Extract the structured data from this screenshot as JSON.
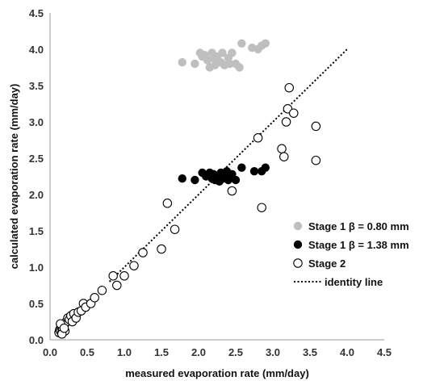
{
  "chart_data": {
    "type": "scatter",
    "xlabel": "measured evaporation rate (mm/day)",
    "ylabel": "calculated evaporation rate (mm/day)",
    "xlim": [
      0,
      4.5
    ],
    "ylim": [
      0,
      4.5
    ],
    "x_ticks": [
      "0.0",
      "0.5",
      "1.0",
      "1.5",
      "2.0",
      "2.5",
      "3.0",
      "3.5",
      "4.0",
      "4.5"
    ],
    "y_ticks": [
      "0.0",
      "0.5",
      "1.0",
      "1.5",
      "2.0",
      "2.5",
      "3.0",
      "3.5",
      "4.0",
      "4.5"
    ],
    "grid": false,
    "legend_position": "right",
    "series": [
      {
        "name": "Stage 1 β = 0.80 mm",
        "marker": "filled-circle",
        "color": "#bfbfbf",
        "points": [
          [
            1.78,
            3.82
          ],
          [
            1.95,
            3.8
          ],
          [
            2.02,
            3.95
          ],
          [
            2.08,
            3.92
          ],
          [
            2.12,
            3.85
          ],
          [
            2.18,
            3.95
          ],
          [
            2.22,
            3.78
          ],
          [
            2.25,
            3.9
          ],
          [
            2.28,
            3.82
          ],
          [
            2.32,
            3.95
          ],
          [
            2.35,
            3.78
          ],
          [
            2.4,
            3.88
          ],
          [
            2.45,
            3.95
          ],
          [
            2.5,
            3.8
          ],
          [
            2.55,
            3.75
          ],
          [
            2.58,
            4.08
          ],
          [
            2.72,
            4.02
          ],
          [
            2.8,
            4.0
          ],
          [
            2.85,
            4.05
          ],
          [
            2.9,
            4.08
          ],
          [
            2.15,
            3.75
          ],
          [
            2.2,
            3.88
          ],
          [
            2.3,
            3.82
          ],
          [
            2.42,
            3.8
          ],
          [
            2.05,
            3.9
          ]
        ]
      },
      {
        "name": "Stage 1 β = 1.38 mm",
        "marker": "filled-circle",
        "color": "#000000",
        "points": [
          [
            1.78,
            2.22
          ],
          [
            1.95,
            2.2
          ],
          [
            2.05,
            2.3
          ],
          [
            2.1,
            2.25
          ],
          [
            2.15,
            2.3
          ],
          [
            2.2,
            2.28
          ],
          [
            2.22,
            2.2
          ],
          [
            2.25,
            2.25
          ],
          [
            2.28,
            2.18
          ],
          [
            2.3,
            2.3
          ],
          [
            2.33,
            2.22
          ],
          [
            2.36,
            2.28
          ],
          [
            2.4,
            2.2
          ],
          [
            2.45,
            2.28
          ],
          [
            2.5,
            2.2
          ],
          [
            2.58,
            2.37
          ],
          [
            2.75,
            2.32
          ],
          [
            2.85,
            2.32
          ],
          [
            2.9,
            2.37
          ],
          [
            2.38,
            2.32
          ],
          [
            2.18,
            2.22
          ],
          [
            2.42,
            2.25
          ]
        ]
      },
      {
        "name": "Stage 2",
        "marker": "open-circle",
        "color": "#000000",
        "points": [
          [
            0.12,
            0.1
          ],
          [
            0.13,
            0.14
          ],
          [
            0.14,
            0.12
          ],
          [
            0.15,
            0.18
          ],
          [
            0.16,
            0.1
          ],
          [
            0.17,
            0.15
          ],
          [
            0.18,
            0.2
          ],
          [
            0.2,
            0.22
          ],
          [
            0.2,
            0.12
          ],
          [
            0.22,
            0.25
          ],
          [
            0.24,
            0.3
          ],
          [
            0.26,
            0.28
          ],
          [
            0.28,
            0.33
          ],
          [
            0.3,
            0.25
          ],
          [
            0.32,
            0.36
          ],
          [
            0.35,
            0.3
          ],
          [
            0.38,
            0.38
          ],
          [
            0.42,
            0.4
          ],
          [
            0.45,
            0.5
          ],
          [
            0.48,
            0.45
          ],
          [
            0.55,
            0.5
          ],
          [
            0.6,
            0.58
          ],
          [
            0.7,
            0.68
          ],
          [
            0.85,
            0.88
          ],
          [
            0.9,
            0.75
          ],
          [
            1.0,
            0.88
          ],
          [
            1.13,
            1.02
          ],
          [
            1.25,
            1.2
          ],
          [
            1.5,
            1.25
          ],
          [
            1.58,
            1.88
          ],
          [
            1.68,
            1.52
          ],
          [
            2.45,
            2.05
          ],
          [
            2.8,
            2.78
          ],
          [
            2.85,
            1.82
          ],
          [
            3.12,
            2.63
          ],
          [
            3.15,
            2.52
          ],
          [
            3.18,
            3.0
          ],
          [
            3.2,
            3.18
          ],
          [
            3.22,
            3.47
          ],
          [
            3.28,
            3.12
          ],
          [
            3.58,
            2.94
          ],
          [
            3.58,
            2.47
          ],
          [
            0.14,
            0.22
          ],
          [
            0.16,
            0.08
          ],
          [
            0.19,
            0.16
          ]
        ]
      },
      {
        "name": "identity line",
        "marker": "dotted-line",
        "color": "#000000",
        "points": [
          [
            0.8,
            0.8
          ],
          [
            4.0,
            4.0
          ]
        ]
      }
    ]
  }
}
